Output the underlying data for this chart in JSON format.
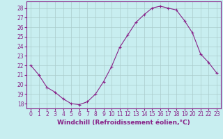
{
  "x": [
    0,
    1,
    2,
    3,
    4,
    5,
    6,
    7,
    8,
    9,
    10,
    11,
    12,
    13,
    14,
    15,
    16,
    17,
    18,
    19,
    20,
    21,
    22,
    23
  ],
  "y": [
    22,
    21,
    19.7,
    19.2,
    18.5,
    18.0,
    17.9,
    18.2,
    19.0,
    20.3,
    21.9,
    23.9,
    25.2,
    26.5,
    27.3,
    28.0,
    28.2,
    28.0,
    27.8,
    26.7,
    25.4,
    23.2,
    22.3,
    21.2
  ],
  "line_color": "#882288",
  "marker": "+",
  "marker_size": 3,
  "bg_color": "#c8eef0",
  "grid_color": "#aacccc",
  "xlabel": "Windchill (Refroidissement éolien,°C)",
  "ylabel_ticks": [
    18,
    19,
    20,
    21,
    22,
    23,
    24,
    25,
    26,
    27,
    28
  ],
  "xticks": [
    0,
    1,
    2,
    3,
    4,
    5,
    6,
    7,
    8,
    9,
    10,
    11,
    12,
    13,
    14,
    15,
    16,
    17,
    18,
    19,
    20,
    21,
    22,
    23
  ],
  "ylim": [
    17.5,
    28.7
  ],
  "xlim": [
    -0.5,
    23.5
  ],
  "tick_fontsize": 5.5,
  "label_fontsize": 6.5
}
